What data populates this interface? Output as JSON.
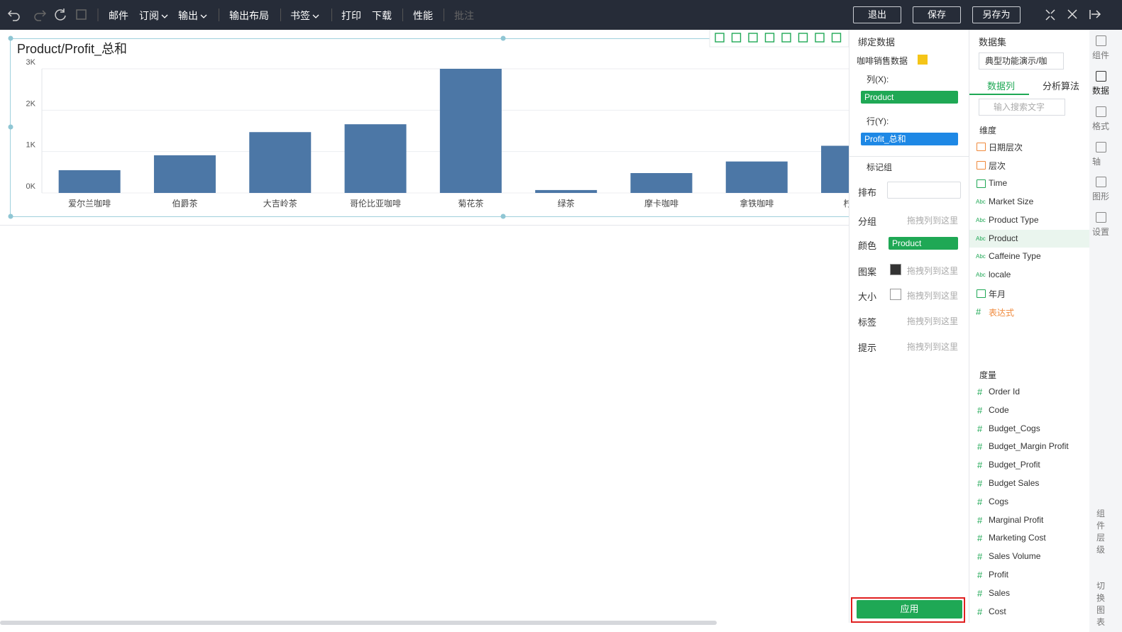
{
  "toolbar": {
    "items": [
      "邮件",
      "订阅",
      "输出",
      "输出布局",
      "书签",
      "打印",
      "下载",
      "性能",
      "批注"
    ],
    "buttons": [
      "退出",
      "保存",
      "另存为"
    ]
  },
  "chart_data": {
    "type": "bar",
    "title": "Product/Profit_总和",
    "categories": [
      "爱尔兰咖啡",
      "伯爵茶",
      "大吉岭茶",
      "哥伦比亚咖啡",
      "菊花茶",
      "绿茶",
      "摩卡咖啡",
      "拿铁咖啡",
      "柠檬"
    ],
    "values": [
      550,
      910,
      1470,
      1660,
      3000,
      70,
      480,
      760,
      1140
    ],
    "color": "#4c77a6",
    "ylim": [
      0,
      3000
    ],
    "yticks": [
      {
        "value": 0,
        "label": "0K"
      },
      {
        "value": 1000,
        "label": "1K"
      },
      {
        "value": 2000,
        "label": "2K"
      },
      {
        "value": 3000,
        "label": "3K"
      }
    ],
    "grid": true
  },
  "binding_panel": {
    "title": "绑定数据",
    "source": "咖啡销售数据",
    "columns_label": "列(X):",
    "columns_field": "Product",
    "rows_label": "行(Y):",
    "rows_field": "Profit_总和",
    "marks_label": "标记组",
    "mark_rows": [
      {
        "label": "排布"
      },
      {
        "label": "分组",
        "placeholder": "拖拽列到这里"
      },
      {
        "label": "颜色",
        "field": "Product"
      },
      {
        "label": "图案",
        "placeholder": "拖拽列到这里"
      },
      {
        "label": "大小",
        "placeholder": "拖拽列到这里"
      },
      {
        "label": "标签",
        "placeholder": "拖拽列到这里"
      },
      {
        "label": "提示",
        "placeholder": "拖拽列到这里"
      }
    ],
    "apply": "应用"
  },
  "dataset_panel": {
    "title": "数据集",
    "dataset": "典型功能演示/咖",
    "tabs": [
      "数据列",
      "分析算法"
    ],
    "search_placeholder": "输入搜索文字",
    "dimensions_label": "维度",
    "dimensions": [
      {
        "kind": "folder",
        "name": "日期层次"
      },
      {
        "kind": "folder",
        "name": "层次"
      },
      {
        "kind": "date",
        "name": "Time"
      },
      {
        "kind": "text",
        "icon": "Abc",
        "name": "Market Size"
      },
      {
        "kind": "text",
        "icon": "Abc",
        "name": "Product Type"
      },
      {
        "kind": "text",
        "icon": "Abc",
        "name": "Product"
      },
      {
        "kind": "text",
        "icon": "Abc",
        "name": "Caffeine Type"
      },
      {
        "kind": "text",
        "icon": "Abc",
        "name": "locale"
      },
      {
        "kind": "date",
        "name": "年月"
      },
      {
        "kind": "expression",
        "icon": "#",
        "name": "表达式"
      }
    ],
    "measures_label": "度量",
    "measure_icon": "#",
    "measures": [
      "Order Id",
      "Code",
      "Budget_Cogs",
      "Budget_Margin Profit",
      "Budget_Profit",
      "Budget Sales",
      "Cogs",
      "Marginal Profit",
      "Marketing Cost",
      "Sales Volume",
      "Profit",
      "Sales",
      "Cost"
    ]
  },
  "side_rail": [
    "组件",
    "数据",
    "格式",
    "轴",
    "图形",
    "设置",
    "组件层级",
    "切换图表"
  ]
}
